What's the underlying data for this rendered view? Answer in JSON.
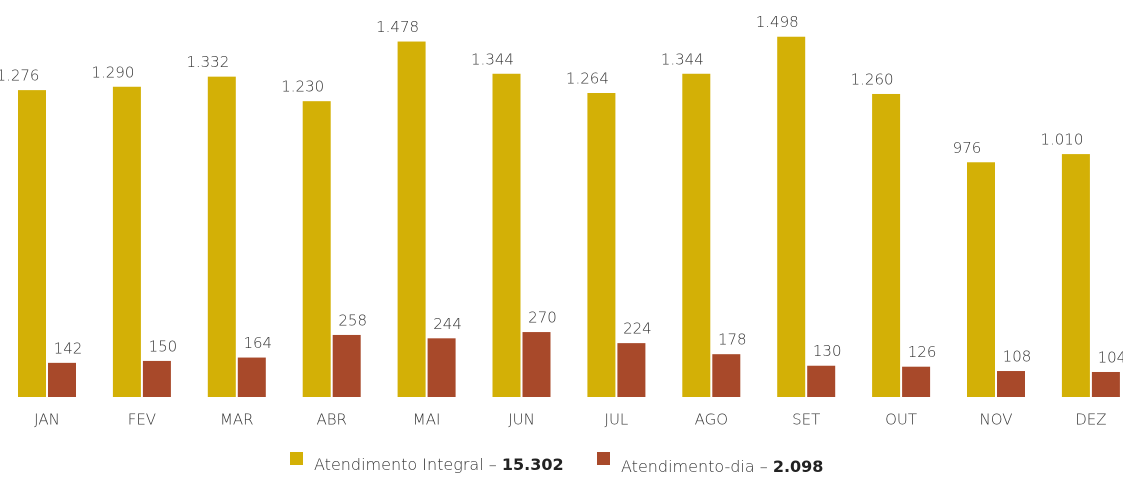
{
  "chart_data": {
    "type": "bar",
    "categories": [
      "JAN",
      "FEV",
      "MAR",
      "ABR",
      "MAI",
      "JUN",
      "JUL",
      "AGO",
      "SET",
      "OUT",
      "NOV",
      "DEZ"
    ],
    "legend_separator": "–",
    "series": [
      {
        "name": "Atendimento Integral",
        "color": "#d3b006",
        "values": [
          1276,
          1290,
          1332,
          1230,
          1478,
          1344,
          1264,
          1344,
          1498,
          1260,
          976,
          1010
        ],
        "value_labels": [
          "1.276",
          "1.290",
          "1.332",
          "1.230",
          "1.478",
          "1.344",
          "1.264",
          "1.344",
          "1.498",
          "1.260",
          "976",
          "1.010"
        ],
        "total": {
          "value": 15302,
          "label": "15.302"
        }
      },
      {
        "name": "Atendimento-dia",
        "color": "#a8492a",
        "values": [
          142,
          150,
          164,
          258,
          244,
          270,
          224,
          178,
          130,
          126,
          108,
          104
        ],
        "total": {
          "value": 2098,
          "label": "2.098"
        }
      }
    ]
  }
}
